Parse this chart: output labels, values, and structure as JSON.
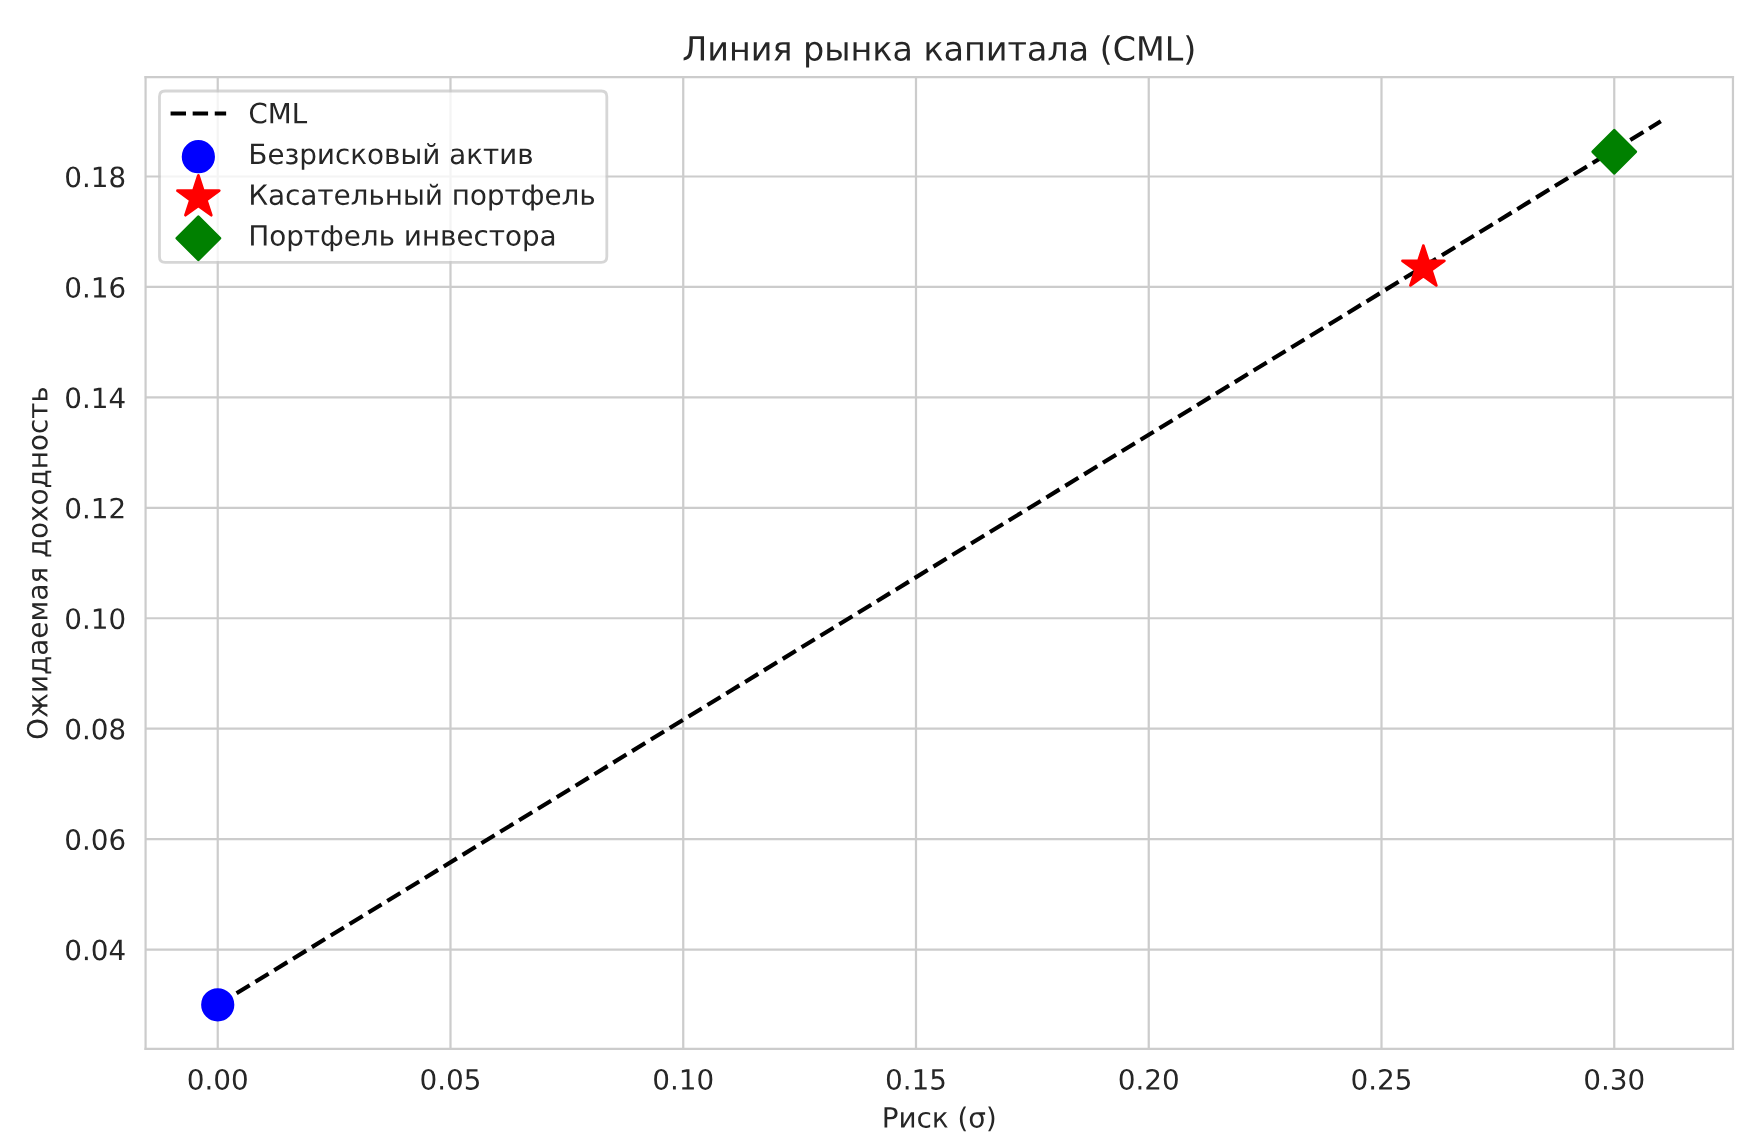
{
  "chart_data": {
    "type": "scatter",
    "title": "Линия рынка капитала (CML)",
    "xlabel": "Риск (σ)",
    "ylabel": "Ожидаемая доходность",
    "series": [
      {
        "name": "CML",
        "type": "line",
        "color": "#000000",
        "line_style": "dashed",
        "marker": "none",
        "x": [
          0.0,
          0.31
        ],
        "values": [
          0.03,
          0.19
        ]
      },
      {
        "name": "Безрисковый актив",
        "color": "#0000ff",
        "marker": "circle",
        "x": [
          0.0
        ],
        "values": [
          0.03
        ]
      },
      {
        "name": "Касательный портфель",
        "color": "#ff0000",
        "marker": "star",
        "x": [
          0.259
        ],
        "values": [
          0.1635
        ]
      },
      {
        "name": "Портфель инвестора",
        "color": "#008000",
        "marker": "diamond",
        "x": [
          0.3
        ],
        "values": [
          0.1845
        ]
      }
    ],
    "xlim": [
      -0.0155,
      0.3255
    ],
    "ylim": [
      0.022,
      0.198
    ],
    "xticks": [
      {
        "value": 0.0,
        "label": "0.00"
      },
      {
        "value": 0.05,
        "label": "0.05"
      },
      {
        "value": 0.1,
        "label": "0.10"
      },
      {
        "value": 0.15,
        "label": "0.15"
      },
      {
        "value": 0.2,
        "label": "0.20"
      },
      {
        "value": 0.25,
        "label": "0.25"
      },
      {
        "value": 0.3,
        "label": "0.30"
      }
    ],
    "yticks": [
      {
        "value": 0.04,
        "label": "0.04"
      },
      {
        "value": 0.06,
        "label": "0.06"
      },
      {
        "value": 0.08,
        "label": "0.08"
      },
      {
        "value": 0.1,
        "label": "0.10"
      },
      {
        "value": 0.12,
        "label": "0.12"
      },
      {
        "value": 0.14,
        "label": "0.14"
      },
      {
        "value": 0.16,
        "label": "0.16"
      },
      {
        "value": 0.18,
        "label": "0.18"
      }
    ],
    "grid": true,
    "legend": "top left"
  }
}
